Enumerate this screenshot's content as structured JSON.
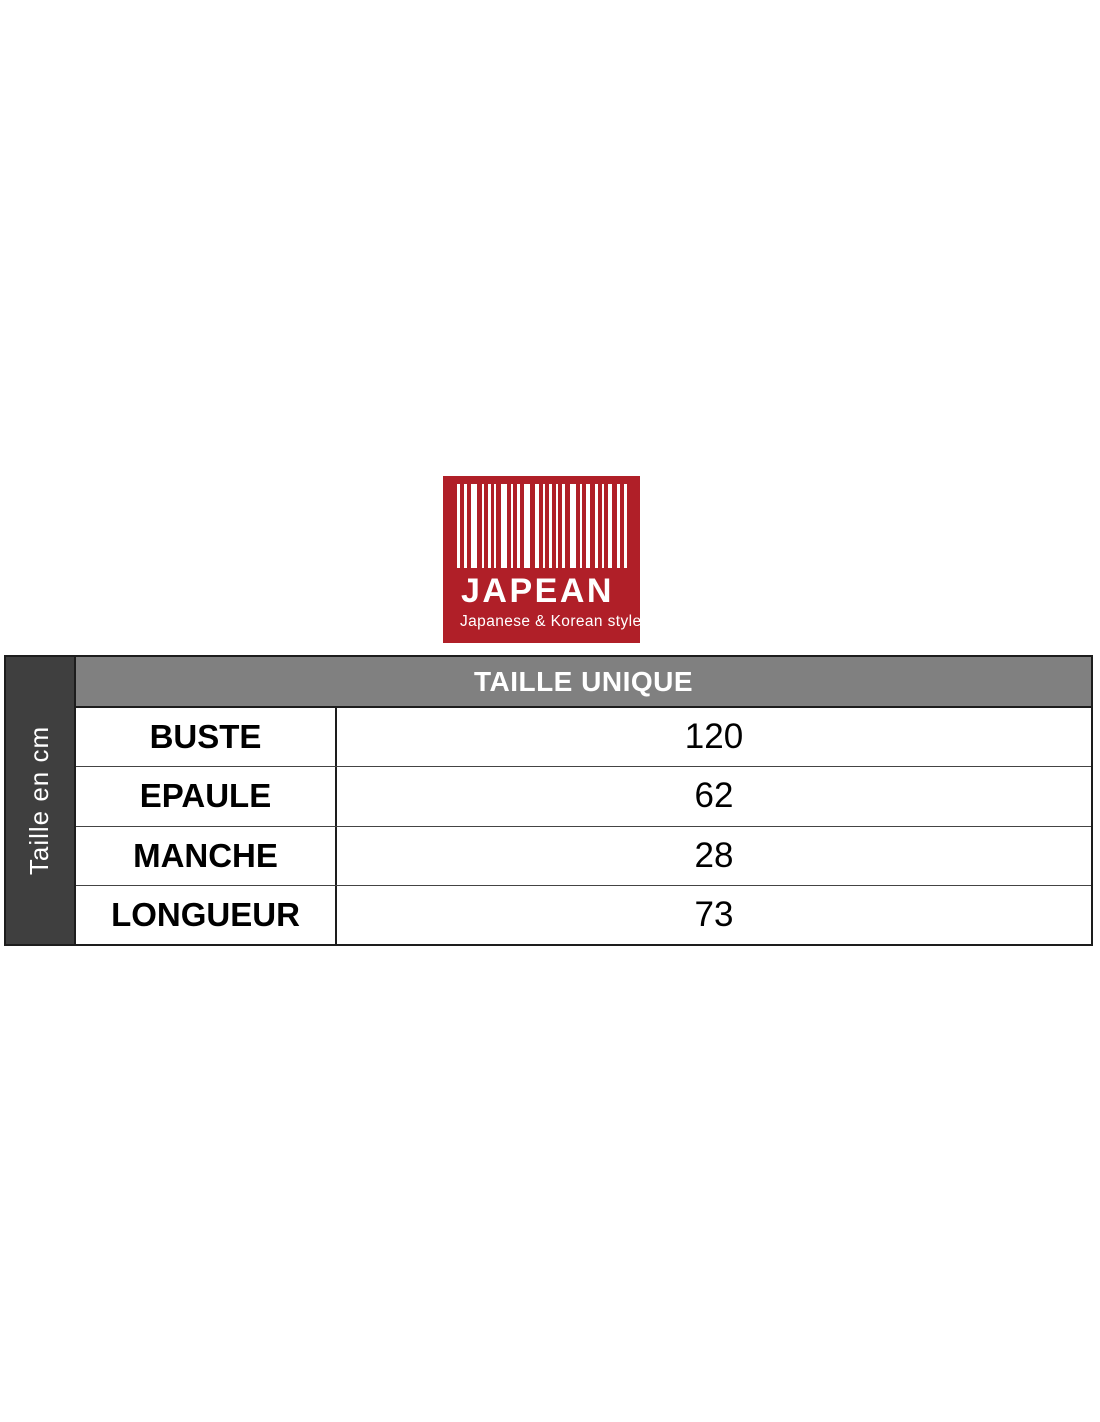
{
  "logo": {
    "brand": "JAPEAN",
    "tagline": "Japanese & Korean style",
    "colors": {
      "background": "#B01F28",
      "text": "#FFFFFF"
    },
    "barcode_icon": "barcode",
    "barcode_pattern": [
      [
        3,
        4
      ],
      [
        3,
        4
      ],
      [
        6,
        5
      ],
      [
        2,
        4
      ],
      [
        3,
        3
      ],
      [
        2,
        5
      ],
      [
        6,
        4
      ],
      [
        2,
        4
      ],
      [
        3,
        4
      ],
      [
        6,
        5
      ],
      [
        4,
        4
      ],
      [
        2,
        4
      ],
      [
        3,
        4
      ],
      [
        2,
        4
      ],
      [
        3,
        5
      ],
      [
        6,
        4
      ],
      [
        2,
        4
      ],
      [
        4,
        5
      ],
      [
        3,
        4
      ],
      [
        2,
        4
      ],
      [
        4,
        5
      ],
      [
        3,
        4
      ],
      [
        3,
        0
      ]
    ]
  },
  "size_table": {
    "side_label": "Taille en cm",
    "column_header": "TAILLE UNIQUE",
    "rows": [
      {
        "label": "BUSTE",
        "value": "120"
      },
      {
        "label": "EPAULE",
        "value": "62"
      },
      {
        "label": "MANCHE",
        "value": "28"
      },
      {
        "label": "LONGUEUR",
        "value": "73"
      }
    ],
    "colors": {
      "header_background": "#808080",
      "header_text": "#FFFFFF",
      "side_background": "#3F3F3F",
      "side_text": "#FFFFFF",
      "border": "#1D1D1D",
      "row_divider": "#444444",
      "cell_text": "#000000",
      "cell_background": "#FFFFFF"
    }
  }
}
